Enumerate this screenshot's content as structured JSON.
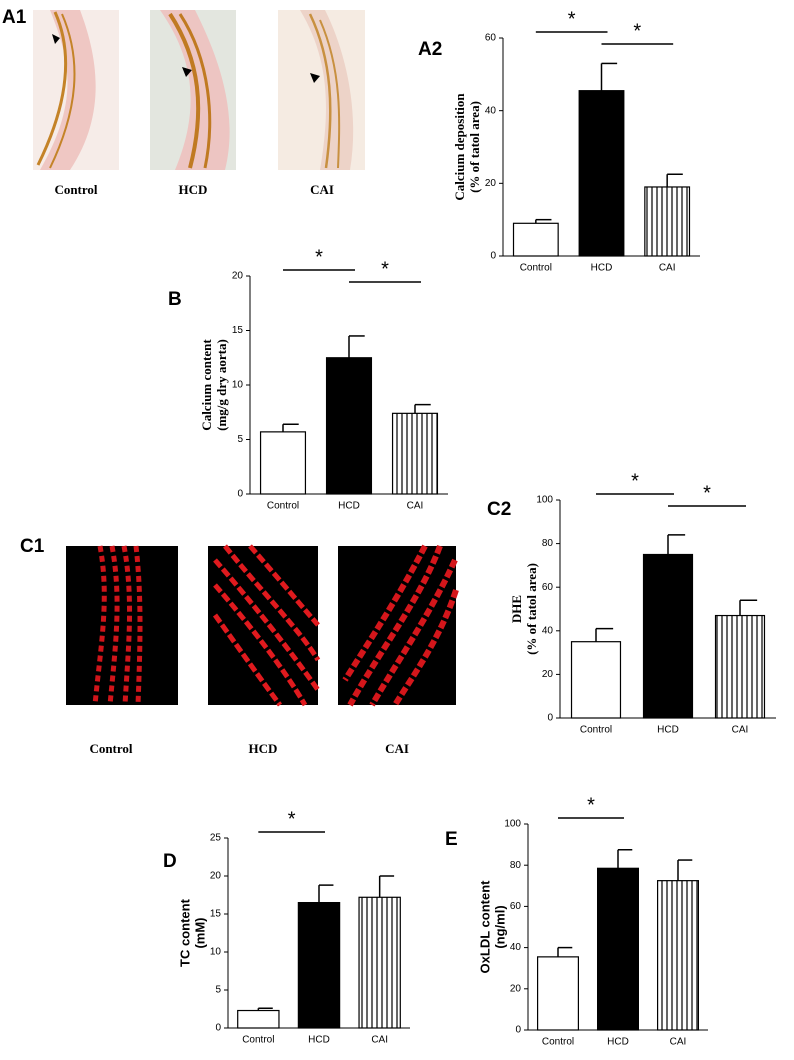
{
  "images": [
    {
      "panel": "A1",
      "captions": [
        "Control",
        "HCD",
        "CAI"
      ]
    },
    {
      "panel": "C1",
      "captions": [
        "Control",
        "HCD",
        "CAI"
      ]
    }
  ],
  "chart_data": [
    {
      "type": "bar",
      "panel": "A2",
      "ylabel": [
        "Calcium deposition",
        "(% of tatol area)"
      ],
      "categories": [
        "Control",
        "HCD",
        "CAI"
      ],
      "values": [
        9,
        45.5,
        19
      ],
      "errors": [
        1,
        7.5,
        3.5
      ],
      "bar_styles": [
        "open",
        "filled",
        "hatched"
      ],
      "ylim": [
        0,
        60
      ],
      "yticks": [
        0,
        20,
        40,
        60
      ],
      "significance": [
        {
          "text": "*",
          "pair": [
            "Control",
            "HCD"
          ]
        },
        {
          "text": "*",
          "pair": [
            "HCD",
            "CAI"
          ]
        }
      ]
    },
    {
      "type": "bar",
      "panel": "B",
      "ylabel": [
        "Calcium content",
        "(mg/g dry aorta)"
      ],
      "categories": [
        "Control",
        "HCD",
        "CAI"
      ],
      "values": [
        5.7,
        12.5,
        7.4
      ],
      "errors": [
        0.7,
        2,
        0.8
      ],
      "bar_styles": [
        "open",
        "filled",
        "hatched"
      ],
      "ylim": [
        0,
        20
      ],
      "yticks": [
        0,
        5,
        10,
        15,
        20
      ],
      "significance": [
        {
          "text": "*",
          "pair": [
            "Control",
            "HCD"
          ]
        },
        {
          "text": "*",
          "pair": [
            "HCD",
            "CAI"
          ]
        }
      ]
    },
    {
      "type": "bar",
      "panel": "C2",
      "ylabel": [
        "DHE",
        "(% of tatol area)"
      ],
      "categories": [
        "Control",
        "HCD",
        "CAI"
      ],
      "values": [
        35,
        75,
        47
      ],
      "errors": [
        6,
        9,
        7
      ],
      "bar_styles": [
        "open",
        "filled",
        "hatched"
      ],
      "ylim": [
        0,
        100
      ],
      "yticks": [
        0,
        20,
        40,
        60,
        80,
        100
      ],
      "significance": [
        {
          "text": "*",
          "pair": [
            "Control",
            "HCD"
          ]
        },
        {
          "text": "*",
          "pair": [
            "HCD",
            "CAI"
          ]
        }
      ]
    },
    {
      "type": "bar",
      "panel": "D",
      "ylabel": [
        "TC content",
        "(mM)"
      ],
      "categories": [
        "Control",
        "HCD",
        "CAI"
      ],
      "values": [
        2.3,
        16.5,
        17.2
      ],
      "errors": [
        0.3,
        2.3,
        2.8
      ],
      "bar_styles": [
        "open",
        "filled",
        "hatched"
      ],
      "ylim": [
        0,
        25
      ],
      "yticks": [
        0,
        5,
        10,
        15,
        20,
        25
      ],
      "significance": [
        {
          "text": "*",
          "pair": [
            "Control",
            "HCD"
          ]
        }
      ]
    },
    {
      "type": "bar",
      "panel": "E",
      "ylabel": [
        "OxLDL content",
        "(ng/ml)"
      ],
      "categories": [
        "Control",
        "HCD",
        "CAI"
      ],
      "values": [
        35.5,
        78.5,
        72.5
      ],
      "errors": [
        4.5,
        9,
        10
      ],
      "bar_styles": [
        "open",
        "filled",
        "hatched"
      ],
      "ylim": [
        0,
        100
      ],
      "yticks": [
        0,
        20,
        40,
        60,
        80,
        100
      ],
      "significance": [
        {
          "text": "*",
          "pair": [
            "Control",
            "HCD"
          ]
        }
      ]
    }
  ]
}
